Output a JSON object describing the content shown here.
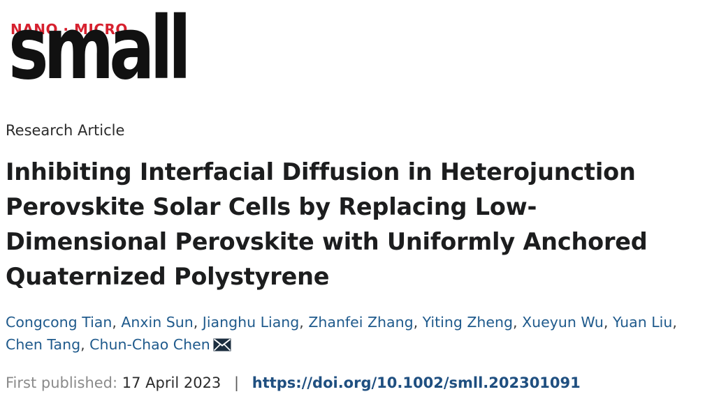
{
  "journal": {
    "logo_top": "NANO · MICRO",
    "logo_word": "small"
  },
  "article": {
    "type": "Research Article",
    "title": "Inhibiting Interfacial Diffusion in Heterojunction Perovskite Solar Cells by Replacing Low-Dimensional Perovskite with Uniformly Anchored Quaternized Polystyrene",
    "authors": [
      "Congcong Tian",
      "Anxin Sun",
      "Jianghu Liang",
      "Zhanfei Zhang",
      "Yiting Zheng",
      "Xueyun Wu",
      "Yuan Liu",
      "Chen Tang",
      "Chun-Chao Chen"
    ],
    "corresponding_icon": "envelope-icon",
    "published_label": "First published:",
    "published_date": "17 April 2023",
    "separator": "|",
    "doi": "https://doi.org/10.1002/smll.202301091"
  },
  "colors": {
    "logo_accent": "#d6212f",
    "link": "#1f5a8c",
    "doi": "#1f4f80"
  }
}
